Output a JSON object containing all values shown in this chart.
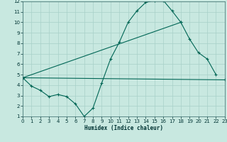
{
  "xlabel": "Humidex (Indice chaleur)",
  "bg_color": "#c8e8e0",
  "grid_color": "#a8d0c8",
  "line_color": "#006655",
  "xlim": [
    0,
    23
  ],
  "ylim": [
    1,
    12
  ],
  "xticks": [
    0,
    1,
    2,
    3,
    4,
    5,
    6,
    7,
    8,
    9,
    10,
    11,
    12,
    13,
    14,
    15,
    16,
    17,
    18,
    19,
    20,
    21,
    22,
    23
  ],
  "yticks": [
    1,
    2,
    3,
    4,
    5,
    6,
    7,
    8,
    9,
    10,
    11,
    12
  ],
  "line1_x": [
    0,
    1,
    2,
    3,
    4,
    5,
    6,
    7,
    8,
    9,
    10,
    11,
    12,
    13,
    14,
    15,
    16,
    17,
    18,
    19,
    20,
    21,
    22
  ],
  "line1_y": [
    4.7,
    3.9,
    3.5,
    2.9,
    3.1,
    2.9,
    2.2,
    1.0,
    1.8,
    4.2,
    6.5,
    8.1,
    10.0,
    11.1,
    11.9,
    12.1,
    12.1,
    11.1,
    10.0,
    8.4,
    7.1,
    6.5,
    5.0
  ],
  "line2_x": [
    0,
    23
  ],
  "line2_y": [
    4.7,
    4.5
  ],
  "line3_x": [
    0,
    18
  ],
  "line3_y": [
    4.7,
    10.0
  ],
  "xlabel_fontsize": 5.5,
  "tick_fontsize": 5,
  "lw": 0.8,
  "marker_size": 3.0
}
